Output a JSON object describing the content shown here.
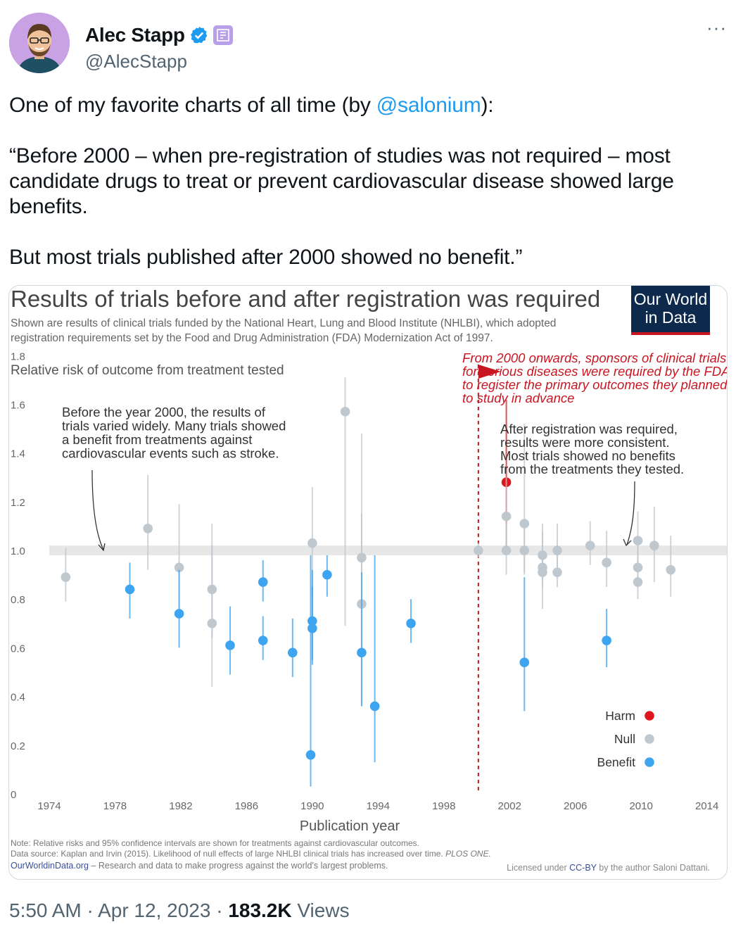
{
  "tweet": {
    "author_name": "Alec Stapp",
    "handle": "@AlecStapp",
    "more_label": "···",
    "text_before_mention": "One of my favorite charts of all time (by ",
    "mention": "@salonium",
    "text_after_mention": "):\n\n“Before 2000 – when pre-registration of studies was not required – most candidate drugs to treat or prevent cardiovascular disease showed large benefits.\n\nBut most trials published after 2000 showed no benefit.”",
    "time": "5:50 AM",
    "date": "Apr 12, 2023",
    "separator": "·",
    "views_count": "183.2K",
    "views_label": "Views"
  },
  "icons": {
    "verified": "verified-badge-icon",
    "affiliate": "affiliate-badge-icon",
    "more": "more-icon"
  },
  "colors": {
    "harm": "#e0161d",
    "null": "#c0c8cf",
    "benefit": "#3da4f0",
    "owid_navy": "#0d2a4d",
    "owid_red": "#c81622",
    "annotation_red": "#c81622",
    "link_blue": "#1d9bf0"
  },
  "chart_data": {
    "type": "scatter",
    "title": "Results of trials before and after registration was required",
    "subtitle": "Shown are results of clinical trials funded by the National Heart, Lung and Blood Institute (NHLBI), which adopted registration requirements set by the Food and Drug Administration (FDA) Modernization Act of 1997.",
    "logo_line1": "Our World",
    "logo_line2": "in Data",
    "ylabel": "Relative risk of outcome from treatment tested",
    "xlabel": "Publication year",
    "xlim": [
      1974,
      2015
    ],
    "ylim": [
      0,
      1.85
    ],
    "x_ticks": [
      "1974",
      "1978",
      "1982",
      "1986",
      "1990",
      "1994",
      "1998",
      "2002",
      "2006",
      "2010",
      "2014"
    ],
    "y_ticks": [
      "0",
      "0.2",
      "0.4",
      "0.6",
      "0.8",
      "1.0",
      "1.2",
      "1.4",
      "1.6",
      "1.8"
    ],
    "null_band": [
      0.98,
      1.02
    ],
    "registration_year": 2000,
    "annotation_before": [
      "Before the year 2000, the results of",
      "trials varied widely. Many trials showed",
      "a benefit from treatments against",
      "cardiovascular events such as stroke."
    ],
    "annotation_after": [
      "After registration was required,",
      "results were more consistent.",
      "Most trials showed no benefits",
      "from the treatments they tested."
    ],
    "annotation_registration": [
      "From 2000 onwards, sponsors of clinical trials",
      "for serious diseases were required by the FDA",
      "to register the primary outcomes they planned",
      "to study in advance"
    ],
    "legend": [
      {
        "label": "Harm",
        "category": "harm"
      },
      {
        "label": "Null",
        "category": "null"
      },
      {
        "label": "Benefit",
        "category": "benefit"
      }
    ],
    "points": [
      {
        "x": 1975.0,
        "y": 0.89,
        "lo": 0.79,
        "hi": 1.01,
        "category": "null"
      },
      {
        "x": 1978.9,
        "y": 0.84,
        "lo": 0.72,
        "hi": 0.95,
        "category": "benefit"
      },
      {
        "x": 1980.0,
        "y": 1.09,
        "lo": 0.92,
        "hi": 1.31,
        "category": "null"
      },
      {
        "x": 1981.9,
        "y": 0.93,
        "lo": 0.74,
        "hi": 1.19,
        "category": "null"
      },
      {
        "x": 1981.9,
        "y": 0.74,
        "lo": 0.6,
        "hi": 0.92,
        "category": "benefit"
      },
      {
        "x": 1983.9,
        "y": 0.84,
        "lo": 0.64,
        "hi": 1.11,
        "category": "null"
      },
      {
        "x": 1983.9,
        "y": 0.7,
        "lo": 0.44,
        "hi": 1.02,
        "category": "null"
      },
      {
        "x": 1985.0,
        "y": 0.61,
        "lo": 0.49,
        "hi": 0.77,
        "category": "benefit"
      },
      {
        "x": 1987.0,
        "y": 0.87,
        "lo": 0.79,
        "hi": 0.96,
        "category": "benefit"
      },
      {
        "x": 1987.0,
        "y": 0.63,
        "lo": 0.55,
        "hi": 0.73,
        "category": "benefit"
      },
      {
        "x": 1988.8,
        "y": 0.58,
        "lo": 0.48,
        "hi": 0.72,
        "category": "benefit"
      },
      {
        "x": 1990.0,
        "y": 1.03,
        "lo": 0.82,
        "hi": 1.26,
        "category": "null"
      },
      {
        "x": 1990.0,
        "y": 0.71,
        "lo": 0.53,
        "hi": 0.92,
        "category": "benefit"
      },
      {
        "x": 1990.0,
        "y": 0.68,
        "lo": 0.55,
        "hi": 0.85,
        "category": "benefit"
      },
      {
        "x": 1989.9,
        "y": 0.16,
        "lo": 0.03,
        "hi": 0.98,
        "category": "benefit"
      },
      {
        "x": 1990.9,
        "y": 0.9,
        "lo": 0.81,
        "hi": 0.98,
        "category": "benefit"
      },
      {
        "x": 1992.0,
        "y": 1.57,
        "lo": 0.69,
        "hi": 1.71,
        "category": "null"
      },
      {
        "x": 1993.0,
        "y": 0.97,
        "lo": 0.82,
        "hi": 1.15,
        "category": "null"
      },
      {
        "x": 1993.0,
        "y": 0.78,
        "lo": 0.36,
        "hi": 1.48,
        "category": "null"
      },
      {
        "x": 1993.0,
        "y": 0.58,
        "lo": 0.36,
        "hi": 0.91,
        "category": "benefit"
      },
      {
        "x": 1993.8,
        "y": 0.36,
        "lo": 0.13,
        "hi": 0.98,
        "category": "benefit"
      },
      {
        "x": 1996.0,
        "y": 0.7,
        "lo": 0.62,
        "hi": 0.8,
        "category": "benefit"
      },
      {
        "x": 2000.1,
        "y": 1.0,
        "lo": 0.97,
        "hi": 1.03,
        "category": "null"
      },
      {
        "x": 2001.8,
        "y": 1.28,
        "lo": 1.0,
        "hi": 1.62,
        "category": "harm"
      },
      {
        "x": 2001.8,
        "y": 1.14,
        "lo": 1.0,
        "hi": 1.3,
        "category": "null"
      },
      {
        "x": 2001.8,
        "y": 1.0,
        "lo": 0.9,
        "hi": 1.11,
        "category": "null"
      },
      {
        "x": 2002.9,
        "y": 1.11,
        "lo": 0.9,
        "hi": 1.52,
        "category": "null"
      },
      {
        "x": 2002.9,
        "y": 1.0,
        "lo": 0.91,
        "hi": 1.1,
        "category": "null"
      },
      {
        "x": 2002.9,
        "y": 0.54,
        "lo": 0.34,
        "hi": 0.89,
        "category": "benefit"
      },
      {
        "x": 2004.0,
        "y": 0.98,
        "lo": 0.88,
        "hi": 1.11,
        "category": "null"
      },
      {
        "x": 2004.0,
        "y": 0.93,
        "lo": 0.85,
        "hi": 1.02,
        "category": "null"
      },
      {
        "x": 2004.0,
        "y": 0.91,
        "lo": 0.76,
        "hi": 1.08,
        "category": "null"
      },
      {
        "x": 2004.9,
        "y": 1.0,
        "lo": 0.9,
        "hi": 1.11,
        "category": "null"
      },
      {
        "x": 2004.9,
        "y": 0.91,
        "lo": 0.85,
        "hi": 0.98,
        "category": "null"
      },
      {
        "x": 2006.9,
        "y": 1.02,
        "lo": 0.94,
        "hi": 1.12,
        "category": "null"
      },
      {
        "x": 2007.9,
        "y": 0.95,
        "lo": 0.85,
        "hi": 1.08,
        "category": "null"
      },
      {
        "x": 2007.9,
        "y": 0.63,
        "lo": 0.52,
        "hi": 0.76,
        "category": "benefit"
      },
      {
        "x": 2009.8,
        "y": 1.04,
        "lo": 0.94,
        "hi": 1.16,
        "category": "null"
      },
      {
        "x": 2009.8,
        "y": 0.93,
        "lo": 0.85,
        "hi": 1.02,
        "category": "null"
      },
      {
        "x": 2009.8,
        "y": 0.87,
        "lo": 0.8,
        "hi": 0.96,
        "category": "null"
      },
      {
        "x": 2010.8,
        "y": 1.02,
        "lo": 0.87,
        "hi": 1.18,
        "category": "null"
      },
      {
        "x": 2011.8,
        "y": 0.92,
        "lo": 0.81,
        "hi": 1.06,
        "category": "null"
      }
    ],
    "note": "Note: Relative risks and 95% confidence intervals are shown for treatments against cardiovascular outcomes.",
    "source_prefix": "Data source: Kaplan and Irvin (2015). Likelihood of null effects of large NHLBI clinical trials has increased over time. ",
    "source_journal": "PLOS ONE.",
    "owid_link": "OurWorldinData.org",
    "owid_tagline": " – Research and data to make progress against the world's largest problems.",
    "license_prefix": "Licensed under ",
    "license_link": "CC-BY",
    "license_suffix": " by the author Saloni Dattani."
  }
}
